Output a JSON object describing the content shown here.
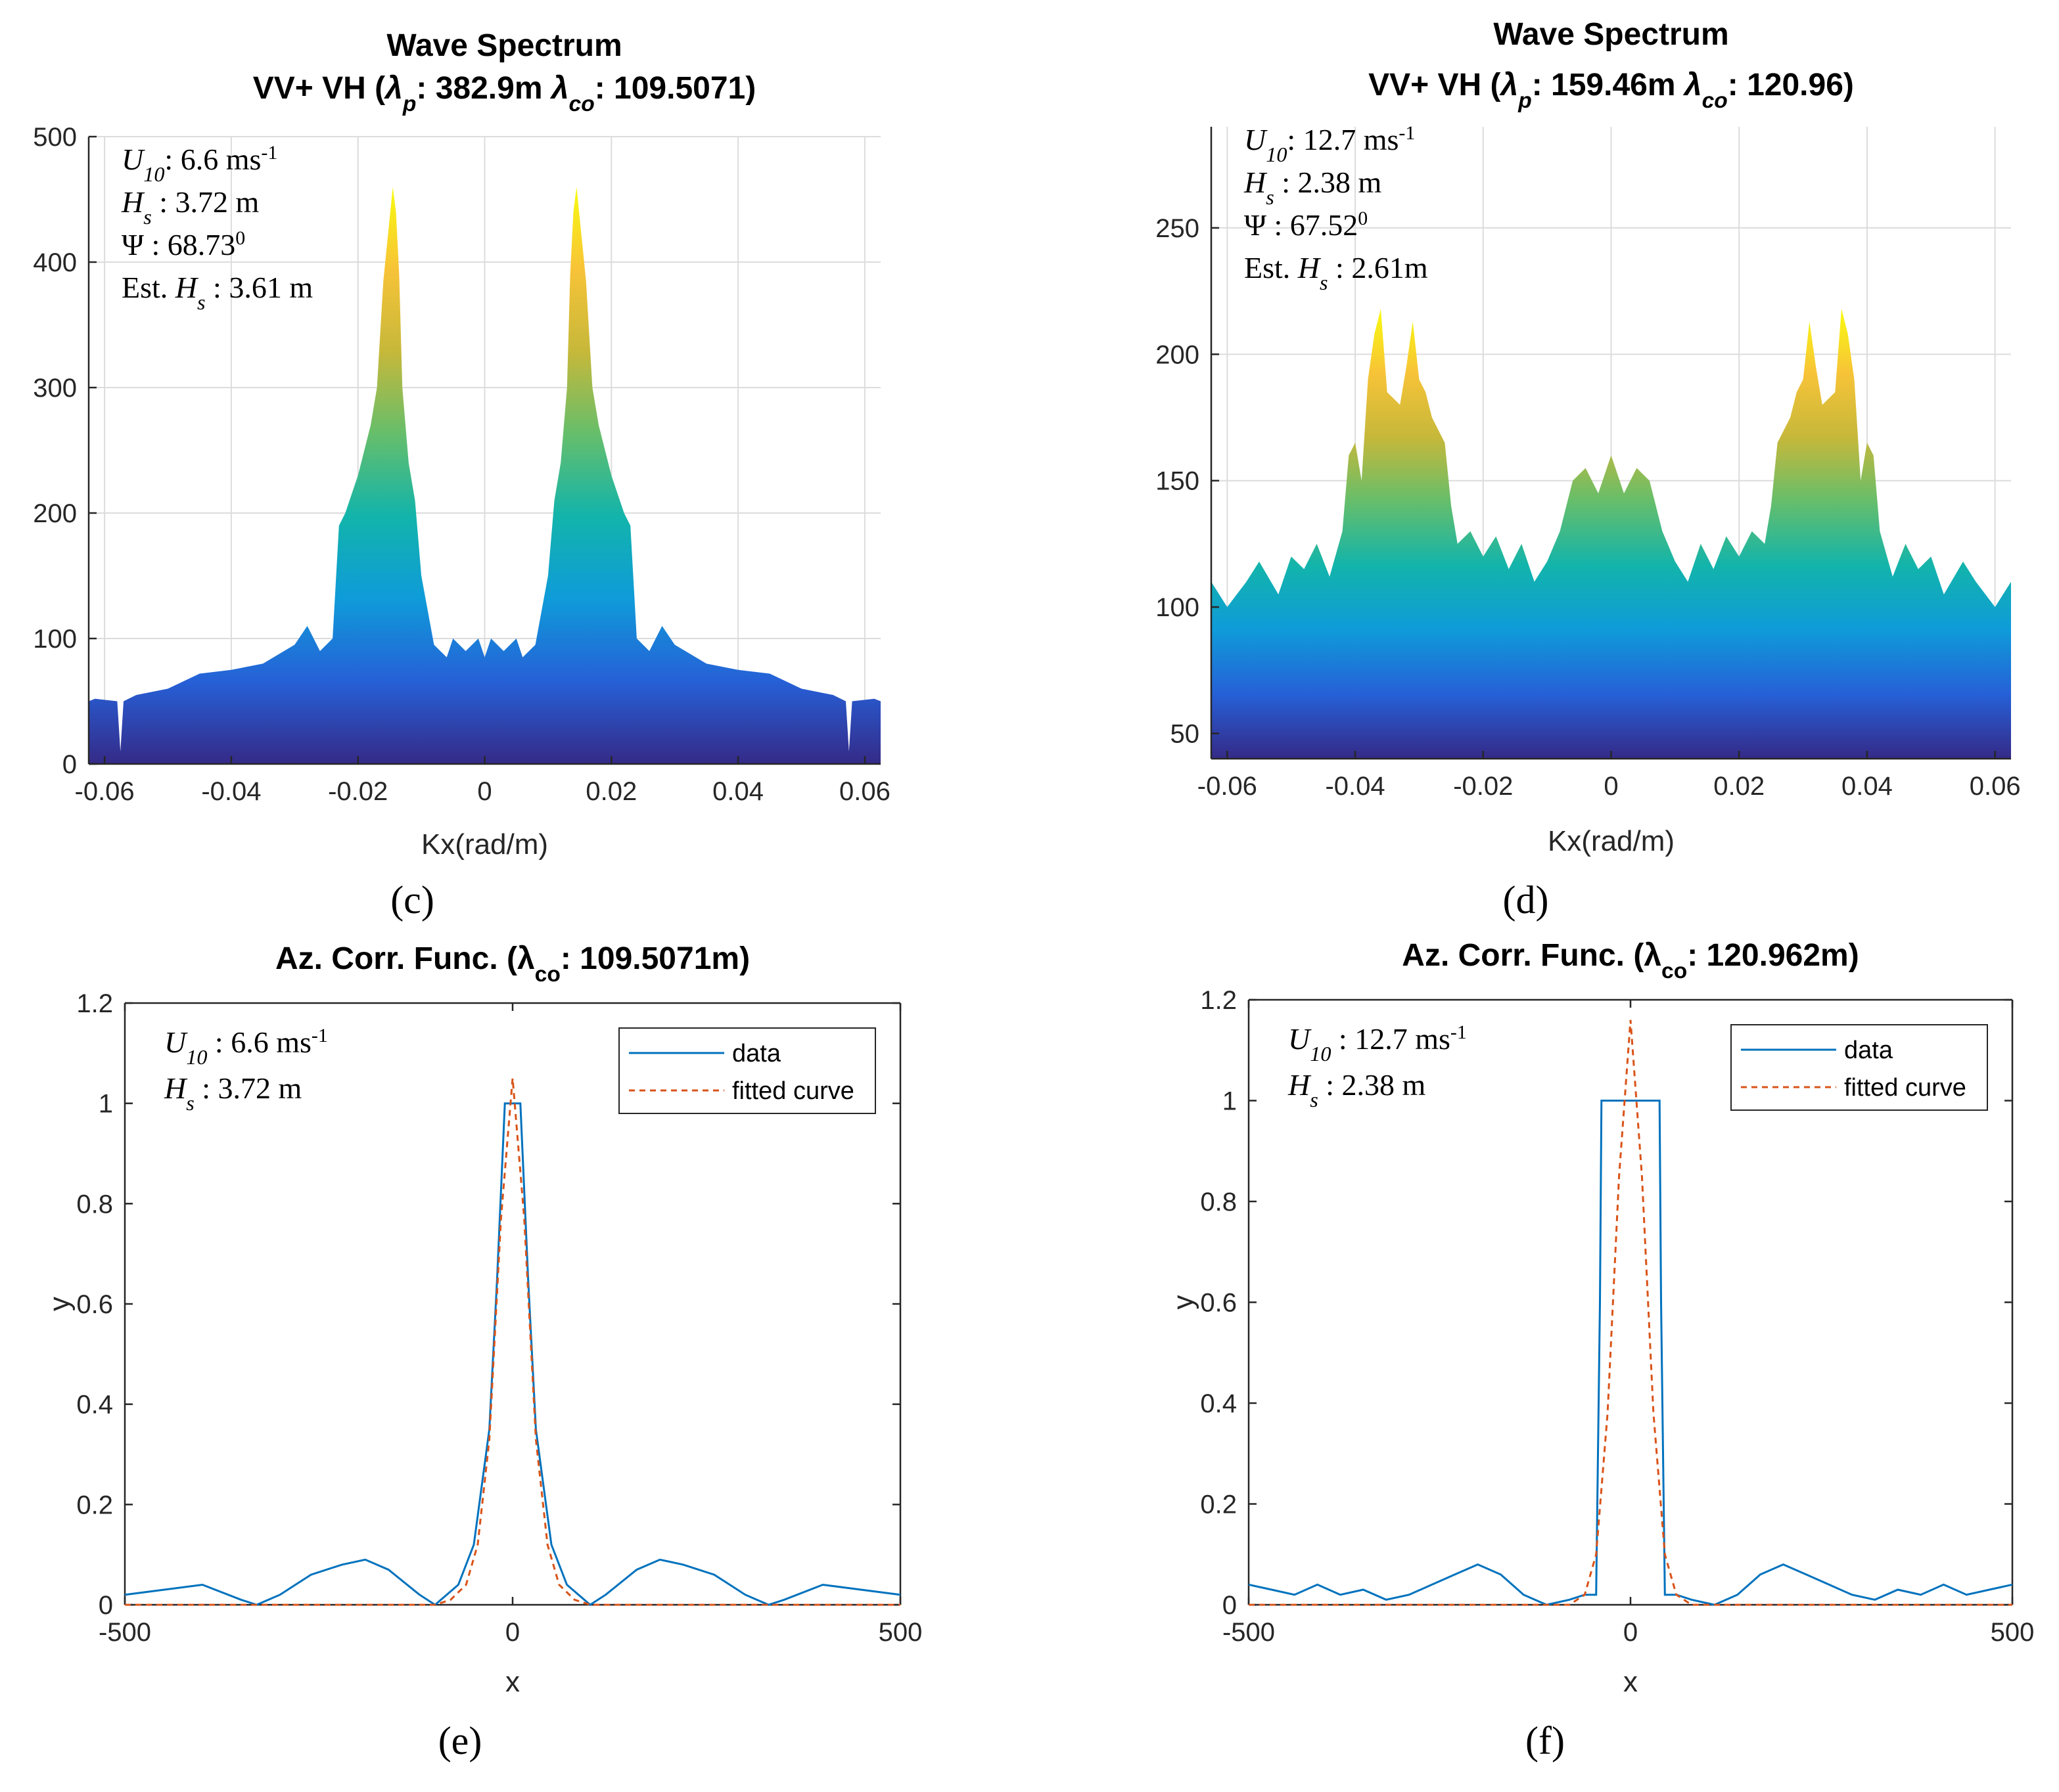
{
  "colors": {
    "data_line": "#0072BD",
    "fitted_curve": "#D95319",
    "grid": "#dcdcdc",
    "axis": "#262626",
    "parula": [
      "#352a87",
      "#2660d7",
      "#0f9bd9",
      "#12b4ab",
      "#65be6b",
      "#c6b83a",
      "#f7c338",
      "#f9fb0e"
    ]
  },
  "chart_data": [
    {
      "id": "c",
      "type": "area",
      "panel_label": "(c)",
      "title_line1": "Wave Spectrum",
      "title_line2": "VV+ VH (λp: 382.9m λco: 109.5071)",
      "xlabel": "Kx(rad/m)",
      "ylabel": "",
      "xlim": [
        -0.0625,
        0.0625
      ],
      "ylim": [
        0,
        500
      ],
      "xticks": [
        -0.06,
        -0.04,
        -0.02,
        0,
        0.02,
        0.04,
        0.06
      ],
      "xtick_labels": [
        "-0.06",
        "-0.04",
        "-0.02",
        "0",
        "0.02",
        "0.04",
        "0.06"
      ],
      "yticks": [
        0,
        100,
        200,
        300,
        400,
        500
      ],
      "ytick_labels": [
        "0",
        "100",
        "200",
        "300",
        "400",
        "500"
      ],
      "grid": true,
      "annotations": [
        "U10: 6.6 ms-1",
        "Hs  : 3.72 m",
        "Ψ : 68.730",
        "Est. Hs  : 3.61 m"
      ],
      "x": [
        -0.0625,
        -0.0615,
        -0.058,
        -0.0575,
        -0.057,
        -0.055,
        -0.05,
        -0.045,
        -0.04,
        -0.035,
        -0.03,
        -0.028,
        -0.026,
        -0.024,
        -0.023,
        -0.022,
        -0.02,
        -0.018,
        -0.017,
        -0.016,
        -0.015,
        -0.0145,
        -0.014,
        -0.0135,
        -0.013,
        -0.012,
        -0.011,
        -0.01,
        -0.008,
        -0.006,
        -0.005,
        -0.003,
        -0.001,
        0,
        0.001,
        0.003,
        0.005,
        0.006,
        0.008,
        0.01,
        0.011,
        0.012,
        0.013,
        0.0135,
        0.014,
        0.0145,
        0.015,
        0.016,
        0.017,
        0.018,
        0.02,
        0.022,
        0.023,
        0.024,
        0.026,
        0.028,
        0.03,
        0.035,
        0.04,
        0.045,
        0.05,
        0.055,
        0.057,
        0.0575,
        0.058,
        0.0615,
        0.0625
      ],
      "y": [
        50,
        52,
        50,
        10,
        50,
        55,
        60,
        72,
        75,
        80,
        95,
        110,
        90,
        100,
        190,
        200,
        230,
        270,
        300,
        385,
        435,
        460,
        440,
        390,
        300,
        240,
        210,
        150,
        95,
        85,
        100,
        90,
        100,
        85,
        100,
        90,
        100,
        85,
        95,
        150,
        210,
        240,
        300,
        390,
        440,
        460,
        435,
        385,
        300,
        270,
        230,
        200,
        190,
        100,
        90,
        110,
        95,
        80,
        75,
        72,
        60,
        55,
        50,
        10,
        50,
        52,
        50
      ]
    },
    {
      "id": "d",
      "type": "area",
      "panel_label": "(d)",
      "title_line1": "Wave Spectrum",
      "title_line2": "VV+ VH (λp: 159.46m λco: 120.96)",
      "xlabel": "Kx(rad/m)",
      "ylabel": "",
      "xlim": [
        -0.0625,
        0.0625
      ],
      "ylim": [
        40,
        290
      ],
      "xticks": [
        -0.06,
        -0.04,
        -0.02,
        0,
        0.02,
        0.04,
        0.06
      ],
      "xtick_labels": [
        "-0.06",
        "-0.04",
        "-0.02",
        "0",
        "0.02",
        "0.04",
        "0.06"
      ],
      "yticks": [
        50,
        100,
        150,
        200,
        250
      ],
      "ytick_labels": [
        "50",
        "100",
        "150",
        "200",
        "250"
      ],
      "grid": true,
      "annotations": [
        "U10: 12.7 ms-1",
        "Hs  : 2.38 m",
        "Ψ : 67.520",
        "Est. Hs  : 2.61m"
      ],
      "x": [
        -0.0625,
        -0.06,
        -0.057,
        -0.055,
        -0.052,
        -0.05,
        -0.048,
        -0.046,
        -0.044,
        -0.042,
        -0.041,
        -0.04,
        -0.039,
        -0.038,
        -0.037,
        -0.036,
        -0.035,
        -0.033,
        -0.032,
        -0.031,
        -0.03,
        -0.029,
        -0.028,
        -0.026,
        -0.025,
        -0.024,
        -0.022,
        -0.02,
        -0.018,
        -0.016,
        -0.014,
        -0.012,
        -0.01,
        -0.008,
        -0.006,
        -0.004,
        -0.002,
        0,
        0.002,
        0.004,
        0.006,
        0.008,
        0.01,
        0.012,
        0.014,
        0.016,
        0.018,
        0.02,
        0.022,
        0.024,
        0.025,
        0.026,
        0.028,
        0.029,
        0.03,
        0.031,
        0.032,
        0.033,
        0.035,
        0.036,
        0.037,
        0.038,
        0.039,
        0.04,
        0.041,
        0.042,
        0.044,
        0.046,
        0.048,
        0.05,
        0.052,
        0.055,
        0.057,
        0.06,
        0.0625
      ],
      "y": [
        110,
        100,
        110,
        118,
        105,
        120,
        115,
        125,
        112,
        130,
        160,
        165,
        150,
        190,
        208,
        218,
        185,
        180,
        195,
        213,
        190,
        185,
        175,
        165,
        140,
        125,
        130,
        120,
        128,
        115,
        125,
        110,
        118,
        130,
        150,
        155,
        145,
        160,
        145,
        155,
        150,
        130,
        118,
        110,
        125,
        115,
        128,
        120,
        130,
        125,
        140,
        165,
        175,
        185,
        190,
        213,
        195,
        180,
        185,
        218,
        208,
        190,
        150,
        165,
        160,
        130,
        112,
        125,
        115,
        120,
        105,
        118,
        110,
        100,
        110
      ]
    },
    {
      "id": "e",
      "type": "line",
      "panel_label": "(e)",
      "title": "Az. Corr. Func. (λco: 109.5071m)",
      "xlabel": "x",
      "ylabel": "y",
      "xlim": [
        -500,
        500
      ],
      "ylim": [
        0,
        1.2
      ],
      "xticks": [
        -500,
        0,
        500
      ],
      "xtick_labels": [
        "-500",
        "0",
        "500"
      ],
      "yticks": [
        0,
        0.2,
        0.4,
        0.6,
        0.8,
        1,
        1.2
      ],
      "ytick_labels": [
        "0",
        "0.2",
        "0.4",
        "0.6",
        "0.8",
        "1",
        "1.2"
      ],
      "grid": false,
      "legend": [
        "data",
        "fitted curve"
      ],
      "legend_position": "top-right",
      "annotations": [
        "U10 : 6.6 ms-1",
        "Hs  : 3.72 m"
      ],
      "series": [
        {
          "name": "data",
          "x": [
            -500,
            -450,
            -400,
            -350,
            -330,
            -300,
            -260,
            -220,
            -190,
            -160,
            -120,
            -100,
            -70,
            -50,
            -30,
            -20,
            -10,
            10,
            20,
            30,
            50,
            70,
            100,
            120,
            160,
            190,
            220,
            260,
            300,
            330,
            350,
            400,
            450,
            500
          ],
          "y": [
            0.02,
            0.03,
            0.04,
            0.01,
            0.0,
            0.02,
            0.06,
            0.08,
            0.09,
            0.07,
            0.02,
            0.0,
            0.04,
            0.12,
            0.35,
            0.65,
            1.0,
            1.0,
            0.65,
            0.35,
            0.12,
            0.04,
            0.0,
            0.02,
            0.07,
            0.09,
            0.08,
            0.06,
            0.02,
            0.0,
            0.01,
            0.04,
            0.03,
            0.02
          ]
        },
        {
          "name": "fitted curve",
          "x": [
            -500,
            -100,
            -80,
            -60,
            -45,
            -30,
            -15,
            0,
            15,
            30,
            45,
            60,
            80,
            100,
            500
          ],
          "y": [
            0,
            0,
            0.01,
            0.04,
            0.12,
            0.33,
            0.77,
            1.05,
            0.77,
            0.33,
            0.12,
            0.04,
            0.01,
            0,
            0
          ]
        }
      ]
    },
    {
      "id": "f",
      "type": "line",
      "panel_label": "(f)",
      "title": "Az. Corr. Func. (λco: 120.962m)",
      "xlabel": "x",
      "ylabel": "y",
      "xlim": [
        -500,
        500
      ],
      "ylim": [
        0,
        1.2
      ],
      "xticks": [
        -500,
        0,
        500
      ],
      "xtick_labels": [
        "-500",
        "0",
        "500"
      ],
      "yticks": [
        0,
        0.2,
        0.4,
        0.6,
        0.8,
        1,
        1.2
      ],
      "ytick_labels": [
        "0",
        "0.2",
        "0.4",
        "0.6",
        "0.8",
        "1",
        "1.2"
      ],
      "grid": false,
      "legend": [
        "data",
        "fitted curve"
      ],
      "legend_position": "top-right",
      "annotations": [
        "U10 : 12.7 ms-1",
        "Hs  : 2.38  m"
      ],
      "series": [
        {
          "name": "data",
          "x": [
            -500,
            -470,
            -440,
            -410,
            -380,
            -350,
            -320,
            -290,
            -260,
            -230,
            -200,
            -170,
            -140,
            -110,
            -80,
            -60,
            -45,
            -40,
            -38,
            38,
            40,
            45,
            60,
            80,
            110,
            140,
            170,
            200,
            230,
            260,
            290,
            320,
            350,
            380,
            410,
            440,
            470,
            500
          ],
          "y": [
            0.04,
            0.03,
            0.02,
            0.04,
            0.02,
            0.03,
            0.01,
            0.02,
            0.04,
            0.06,
            0.08,
            0.06,
            0.02,
            0.0,
            0.01,
            0.02,
            0.02,
            0.6,
            1.0,
            1.0,
            0.6,
            0.02,
            0.02,
            0.01,
            0.0,
            0.02,
            0.06,
            0.08,
            0.06,
            0.04,
            0.02,
            0.01,
            0.03,
            0.02,
            0.04,
            0.02,
            0.03,
            0.04
          ]
        },
        {
          "name": "fitted curve",
          "x": [
            -500,
            -80,
            -60,
            -45,
            -30,
            -15,
            0,
            15,
            30,
            45,
            60,
            80,
            500
          ],
          "y": [
            0,
            0,
            0.02,
            0.1,
            0.38,
            0.85,
            1.16,
            0.85,
            0.38,
            0.1,
            0.02,
            0,
            0
          ]
        }
      ]
    }
  ]
}
